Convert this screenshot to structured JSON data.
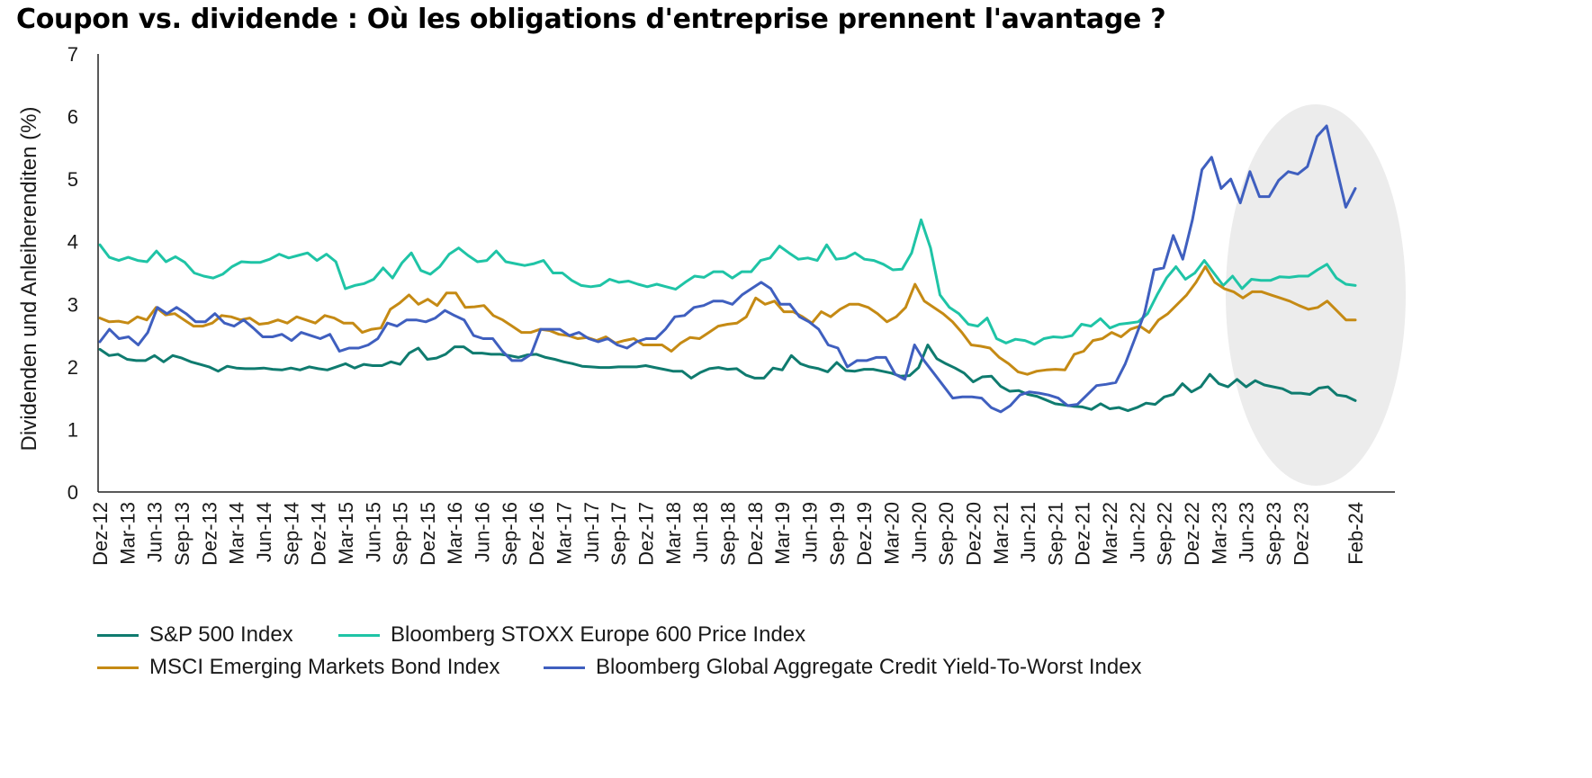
{
  "title": "Coupon vs. dividende : Où les obligations d'entreprise prennent l'avantage ?",
  "chart_data": {
    "type": "line",
    "ylabel": "Dividenden und Anleiherenditen (%)",
    "ylim": [
      0,
      7
    ],
    "yticks": [
      0,
      1,
      2,
      3,
      4,
      5,
      6,
      7
    ],
    "x_start": "Dez-12",
    "x_end": "Feb-24",
    "xticks": [
      "Dez-12",
      "Mar-13",
      "Jun-13",
      "Sep-13",
      "Dez-13",
      "Mar-14",
      "Jun-14",
      "Sep-14",
      "Dez-14",
      "Mar-15",
      "Jun-15",
      "Sep-15",
      "Dez-15",
      "Mar-16",
      "Jun-16",
      "Sep-16",
      "Dez-16",
      "Mar-17",
      "Jun-17",
      "Sep-17",
      "Dez-17",
      "Mar-18",
      "Jun-18",
      "Sep-18",
      "Dez-18",
      "Mar-19",
      "Jun-19",
      "Sep-19",
      "Dez-19",
      "Mar-20",
      "Jun-20",
      "Sep-20",
      "Dez-20",
      "Mar-21",
      "Jun-21",
      "Sep-21",
      "Dez-21",
      "Mar-22",
      "Jun-22",
      "Sep-22",
      "Dez-22",
      "Mar-23",
      "Jun-23",
      "Sep-23",
      "Dez-23",
      "Feb-24"
    ],
    "grid": false,
    "legend_position": "bottom",
    "highlight": "ellipse around Dez-22 to Feb-24",
    "series": [
      {
        "name": "S&P 500 Index",
        "color": "#0f7b6f",
        "values": [
          2.28,
          2.18,
          2.2,
          2.12,
          2.1,
          2.1,
          2.18,
          2.08,
          2.18,
          2.14,
          2.08,
          2.04,
          2.0,
          1.93,
          2.01,
          1.98,
          1.97,
          1.97,
          1.98,
          1.96,
          1.95,
          1.98,
          1.95,
          2.0,
          1.97,
          1.95,
          2.0,
          2.05,
          1.98,
          2.04,
          2.02,
          2.02,
          2.08,
          2.04,
          2.22,
          2.3,
          2.12,
          2.14,
          2.2,
          2.32,
          2.32,
          2.22,
          2.22,
          2.2,
          2.2,
          2.18,
          2.15,
          2.19,
          2.2,
          2.15,
          2.12,
          2.08,
          2.05,
          2.01,
          2.0,
          1.99,
          1.99,
          2.0,
          2.0,
          2.0,
          2.02,
          1.99,
          1.96,
          1.93,
          1.93,
          1.82,
          1.91,
          1.97,
          1.99,
          1.96,
          1.97,
          1.87,
          1.82,
          1.82,
          1.98,
          1.95,
          2.18,
          2.05,
          2.0,
          1.97,
          1.92,
          2.07,
          1.94,
          1.93,
          1.96,
          1.96,
          1.93,
          1.9,
          1.85,
          1.86,
          1.99,
          2.35,
          2.13,
          2.05,
          1.98,
          1.9,
          1.76,
          1.84,
          1.85,
          1.69,
          1.61,
          1.62,
          1.56,
          1.53,
          1.47,
          1.41,
          1.39,
          1.37,
          1.36,
          1.32,
          1.41,
          1.33,
          1.35,
          1.3,
          1.35,
          1.42,
          1.4,
          1.52,
          1.56,
          1.73,
          1.6,
          1.68,
          1.88,
          1.73,
          1.68,
          1.8,
          1.68,
          1.78,
          1.71,
          1.68,
          1.65,
          1.58,
          1.58,
          1.56,
          1.66,
          1.68,
          1.55,
          1.53,
          1.46
        ]
      },
      {
        "name": "Bloomberg STOXX Europe 600 Price Index",
        "color": "#1fc4a6",
        "values": [
          3.95,
          3.75,
          3.7,
          3.75,
          3.7,
          3.68,
          3.85,
          3.68,
          3.76,
          3.67,
          3.5,
          3.45,
          3.42,
          3.48,
          3.6,
          3.68,
          3.67,
          3.67,
          3.72,
          3.8,
          3.74,
          3.78,
          3.82,
          3.7,
          3.8,
          3.68,
          3.25,
          3.3,
          3.33,
          3.4,
          3.58,
          3.42,
          3.66,
          3.82,
          3.54,
          3.48,
          3.6,
          3.8,
          3.9,
          3.78,
          3.68,
          3.7,
          3.85,
          3.68,
          3.65,
          3.62,
          3.65,
          3.7,
          3.5,
          3.5,
          3.38,
          3.3,
          3.28,
          3.3,
          3.4,
          3.35,
          3.37,
          3.32,
          3.28,
          3.32,
          3.28,
          3.24,
          3.35,
          3.45,
          3.43,
          3.52,
          3.52,
          3.42,
          3.52,
          3.52,
          3.7,
          3.74,
          3.93,
          3.82,
          3.72,
          3.74,
          3.7,
          3.95,
          3.72,
          3.74,
          3.82,
          3.72,
          3.7,
          3.64,
          3.55,
          3.56,
          3.82,
          4.35,
          3.9,
          3.15,
          2.95,
          2.85,
          2.68,
          2.65,
          2.78,
          2.45,
          2.38,
          2.44,
          2.42,
          2.36,
          2.45,
          2.48,
          2.47,
          2.5,
          2.68,
          2.65,
          2.77,
          2.62,
          2.68,
          2.7,
          2.72,
          2.85,
          3.15,
          3.42,
          3.6,
          3.4,
          3.5,
          3.7,
          3.5,
          3.3,
          3.45,
          3.25,
          3.4,
          3.38,
          3.38,
          3.44,
          3.43,
          3.45,
          3.45,
          3.55,
          3.64,
          3.42,
          3.32,
          3.3
        ]
      },
      {
        "name": "MSCI Emerging Markets Bond Index",
        "color": "#c58a14",
        "values": [
          2.78,
          2.72,
          2.73,
          2.7,
          2.8,
          2.75,
          2.95,
          2.83,
          2.85,
          2.75,
          2.65,
          2.65,
          2.7,
          2.82,
          2.8,
          2.75,
          2.78,
          2.68,
          2.7,
          2.75,
          2.7,
          2.8,
          2.75,
          2.7,
          2.82,
          2.78,
          2.7,
          2.7,
          2.55,
          2.6,
          2.62,
          2.92,
          3.02,
          3.15,
          3.0,
          3.08,
          2.98,
          3.18,
          3.18,
          2.95,
          2.96,
          2.98,
          2.82,
          2.75,
          2.65,
          2.55,
          2.55,
          2.6,
          2.58,
          2.52,
          2.5,
          2.45,
          2.47,
          2.42,
          2.48,
          2.38,
          2.42,
          2.45,
          2.35,
          2.35,
          2.35,
          2.25,
          2.38,
          2.47,
          2.45,
          2.55,
          2.65,
          2.68,
          2.7,
          2.8,
          3.1,
          3.0,
          3.05,
          2.88,
          2.88,
          2.8,
          2.7,
          2.88,
          2.8,
          2.92,
          3.0,
          3.0,
          2.95,
          2.85,
          2.72,
          2.8,
          2.95,
          3.32,
          3.05,
          2.95,
          2.85,
          2.72,
          2.55,
          2.35,
          2.33,
          2.3,
          2.15,
          2.05,
          1.92,
          1.88,
          1.93,
          1.95,
          1.96,
          1.95,
          2.2,
          2.25,
          2.42,
          2.45,
          2.55,
          2.48,
          2.6,
          2.65,
          2.55,
          2.75,
          2.85,
          3.0,
          3.15,
          3.35,
          3.6,
          3.35,
          3.25,
          3.2,
          3.1,
          3.2,
          3.2,
          3.15,
          3.1,
          3.05,
          2.98,
          2.92,
          2.95,
          3.05,
          2.9,
          2.75,
          2.75
        ]
      },
      {
        "name": "Bloomberg Global Aggregate Credit Yield-To-Worst Index",
        "color": "#3f5fbf",
        "values": [
          2.4,
          2.6,
          2.45,
          2.48,
          2.35,
          2.55,
          2.95,
          2.85,
          2.95,
          2.85,
          2.72,
          2.72,
          2.85,
          2.7,
          2.65,
          2.75,
          2.62,
          2.48,
          2.48,
          2.52,
          2.42,
          2.55,
          2.5,
          2.45,
          2.52,
          2.25,
          2.3,
          2.3,
          2.35,
          2.45,
          2.7,
          2.65,
          2.75,
          2.75,
          2.72,
          2.78,
          2.9,
          2.82,
          2.75,
          2.5,
          2.45,
          2.45,
          2.25,
          2.1,
          2.1,
          2.2,
          2.6,
          2.6,
          2.6,
          2.5,
          2.55,
          2.45,
          2.4,
          2.45,
          2.35,
          2.3,
          2.4,
          2.45,
          2.45,
          2.6,
          2.8,
          2.82,
          2.95,
          2.98,
          3.05,
          3.05,
          3.0,
          3.15,
          3.25,
          3.35,
          3.25,
          3.0,
          3.0,
          2.8,
          2.72,
          2.6,
          2.35,
          2.3,
          2.0,
          2.1,
          2.1,
          2.15,
          2.15,
          1.88,
          1.8,
          2.35,
          2.1,
          1.9,
          1.7,
          1.5,
          1.52,
          1.52,
          1.5,
          1.35,
          1.28,
          1.38,
          1.55,
          1.6,
          1.58,
          1.55,
          1.5,
          1.38,
          1.4,
          1.55,
          1.7,
          1.72,
          1.75,
          2.05,
          2.45,
          2.85,
          3.55,
          3.58,
          4.1,
          3.72,
          4.35,
          5.15,
          5.35,
          4.85,
          5.0,
          4.62,
          5.12,
          4.72,
          4.72,
          4.98,
          5.12,
          5.08,
          5.2,
          5.68,
          5.85,
          5.2,
          4.55,
          4.85
        ]
      }
    ]
  }
}
